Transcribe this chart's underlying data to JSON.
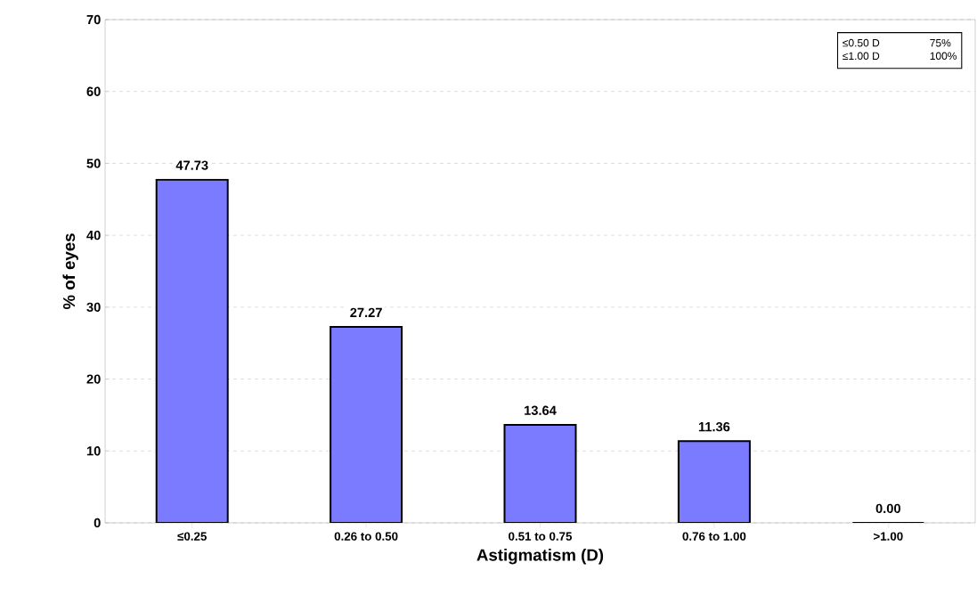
{
  "chart_data": {
    "type": "bar",
    "xlabel": "Astigmatism (D)",
    "ylabel": "% of eyes",
    "categories": [
      "≤0.25",
      "0.26 to 0.50",
      "0.51 to 0.75",
      "0.76 to 1.00",
      ">1.00"
    ],
    "values": [
      47.73,
      27.27,
      13.64,
      11.36,
      0.0
    ],
    "value_labels": [
      "47.73",
      "27.27",
      "13.64",
      "11.36",
      "0.00"
    ],
    "color": "#7b7bff",
    "ylim": [
      0,
      70
    ],
    "yticks": [
      0,
      10,
      20,
      30,
      40,
      50,
      60,
      70
    ],
    "grid": "y",
    "annotations": [
      "≤0.50 D",
      "75%",
      "≤1.00 D",
      "100%"
    ]
  }
}
